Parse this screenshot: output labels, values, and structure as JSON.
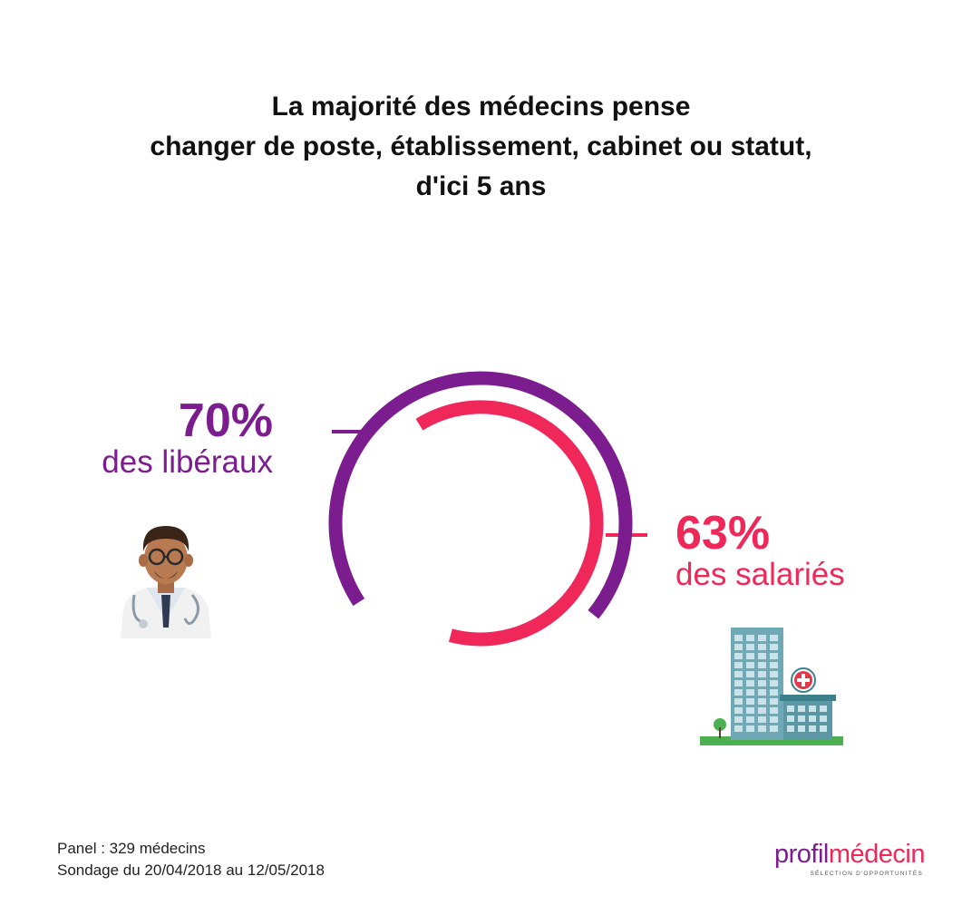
{
  "title": {
    "line1": "La majorité des médecins pense",
    "line2": "changer de poste, établissement, cabinet ou statut,",
    "line3": "d'ici 5 ans"
  },
  "chart_data": {
    "type": "pie",
    "style": "concentric-ring-arcs",
    "series": [
      {
        "percent_label": "70%",
        "label": "des libéraux",
        "value": 70,
        "color": "#7b1d8e",
        "ring": "outer"
      },
      {
        "percent_label": "63%",
        "label": "des salariés",
        "value": 63,
        "color": "#f0285a",
        "ring": "inner"
      }
    ]
  },
  "footer": {
    "panel": "Panel : 329 médecins",
    "survey": "Sondage du 20/04/2018 au 12/05/2018"
  },
  "logo": {
    "part1": "profil",
    "part2": "médecin",
    "tagline": "SÉLECTION D'OPPORTUNITÉS"
  },
  "icons": {
    "left": "doctor-icon",
    "right": "hospital-building-icon"
  },
  "colors": {
    "liberaux": "#7b1d8e",
    "salaries": "#f0285a",
    "title": "#111111"
  }
}
